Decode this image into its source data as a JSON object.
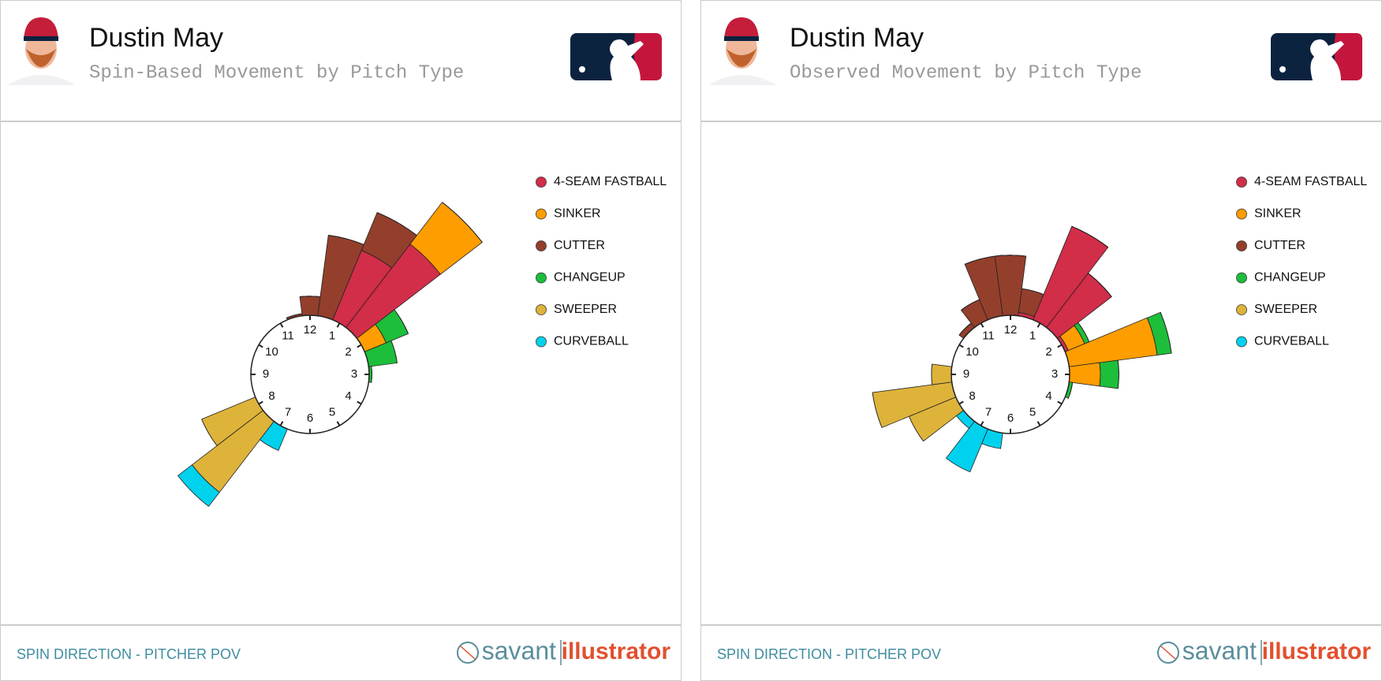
{
  "chart_data": [
    {
      "type": "polar-bar",
      "title": "Dustin May",
      "subtitle": "Spin-Based Movement by Pitch Type",
      "caption": "SPIN DIRECTION - PITCHER POV",
      "brand": [
        "savant",
        "illustrator"
      ],
      "x": [
        0.5,
        1,
        1.5,
        2,
        2.5,
        3,
        3.5,
        4,
        4.5,
        5,
        5.5,
        6,
        6.5,
        7,
        7.5,
        8,
        8.5,
        9,
        9.5,
        10,
        10.5,
        11,
        11.5,
        12
      ],
      "xlim": [
        0,
        12
      ],
      "xticks": [
        1,
        2,
        3,
        4,
        5,
        6,
        7,
        8,
        9,
        10,
        11,
        12
      ],
      "rlim": [
        0,
        300
      ],
      "legend": "right",
      "series": [
        {
          "name": "4-SEAM FASTBALL",
          "color": "#d22d49",
          "values": [
            0,
            110,
            154,
            0,
            0,
            0,
            0,
            0,
            0,
            0,
            0,
            0,
            0,
            0,
            0,
            0,
            0,
            0,
            0,
            0,
            0,
            0,
            0,
            0
          ]
        },
        {
          "name": "SINKER",
          "color": "#fe9d00",
          "values": [
            0,
            0,
            77,
            34,
            0,
            0,
            0,
            0,
            0,
            0,
            0,
            0,
            0,
            0,
            0,
            0,
            0,
            0,
            0,
            0,
            0,
            0,
            0,
            0
          ]
        },
        {
          "name": "CUTTER",
          "color": "#933f2c",
          "values": [
            119,
            60,
            0,
            0,
            0,
            0,
            0,
            0,
            0,
            0,
            0,
            0,
            0,
            0,
            0,
            0,
            0,
            0,
            0,
            0,
            0,
            0,
            3,
            28
          ]
        },
        {
          "name": "CHANGEUP",
          "color": "#1dbe3a",
          "values": [
            0,
            0,
            0,
            35,
            42,
            4,
            0,
            0,
            0,
            0,
            0,
            0,
            0,
            0,
            0,
            0,
            0,
            0,
            0,
            0,
            0,
            0,
            0,
            0
          ]
        },
        {
          "name": "SWEEPER",
          "color": "#ddb33a",
          "values": [
            0,
            0,
            0,
            0,
            0,
            0,
            0,
            0,
            0,
            0,
            0,
            0,
            0,
            0,
            131,
            85,
            0,
            0,
            0,
            0,
            0,
            0,
            0,
            0
          ]
        },
        {
          "name": "CURVEBALL",
          "color": "#00d1ed",
          "values": [
            0,
            0,
            0,
            0,
            0,
            0,
            0,
            0,
            0,
            0,
            0,
            0,
            0,
            34,
            26,
            0,
            0,
            0,
            0,
            0,
            0,
            0,
            0,
            0
          ]
        }
      ]
    },
    {
      "type": "polar-bar",
      "title": "Dustin May",
      "subtitle": "Observed Movement by Pitch Type",
      "caption": "SPIN DIRECTION - PITCHER POV",
      "brand": [
        "savant",
        "illustrator"
      ],
      "x": [
        0.5,
        1,
        1.5,
        2,
        2.5,
        3,
        3.5,
        4,
        4.5,
        5,
        5.5,
        6,
        6.5,
        7,
        7.5,
        8,
        8.5,
        9,
        9.5,
        10,
        10.5,
        11,
        11.5,
        12
      ],
      "xlim": [
        0,
        12
      ],
      "xticks": [
        1,
        2,
        3,
        4,
        5,
        6,
        7,
        8,
        9,
        10,
        11,
        12
      ],
      "rlim": [
        0,
        300
      ],
      "legend": "right",
      "series": [
        {
          "name": "4-SEAM FASTBALL",
          "color": "#d22d49",
          "values": [
            5,
            148,
            100,
            5,
            0,
            0,
            0,
            0,
            0,
            0,
            0,
            0,
            0,
            0,
            0,
            0,
            0,
            0,
            0,
            0,
            0,
            0,
            0,
            0
          ]
        },
        {
          "name": "SINKER",
          "color": "#fe9d00",
          "values": [
            0,
            0,
            0,
            26,
            130,
            45,
            0,
            0,
            0,
            0,
            0,
            0,
            0,
            0,
            0,
            0,
            0,
            0,
            0,
            0,
            0,
            0,
            0,
            0
          ]
        },
        {
          "name": "CUTTER",
          "color": "#933f2c",
          "values": [
            35,
            0,
            0,
            0,
            0,
            0,
            0,
            0,
            0,
            0,
            0,
            0,
            0,
            0,
            0,
            0,
            0,
            0,
            0,
            0,
            8,
            32,
            88,
            88
          ]
        },
        {
          "name": "CHANGEUP",
          "color": "#1dbe3a",
          "values": [
            0,
            0,
            0,
            7,
            21,
            27,
            5,
            0,
            0,
            0,
            0,
            0,
            0,
            0,
            0,
            0,
            0,
            0,
            0,
            0,
            0,
            0,
            0,
            0
          ]
        },
        {
          "name": "SWEEPER",
          "color": "#ddb33a",
          "values": [
            0,
            0,
            0,
            0,
            0,
            0,
            0,
            0,
            0,
            0,
            0,
            0,
            0,
            0,
            0,
            74,
            117,
            29,
            0,
            0,
            0,
            0,
            0,
            0
          ]
        },
        {
          "name": "CURVEBALL",
          "color": "#00d1ed",
          "values": [
            0,
            0,
            0,
            0,
            0,
            0,
            0,
            0,
            0,
            0,
            0,
            0,
            23,
            68,
            13,
            0,
            0,
            0,
            0,
            0,
            0,
            0,
            0,
            0
          ]
        }
      ]
    }
  ]
}
